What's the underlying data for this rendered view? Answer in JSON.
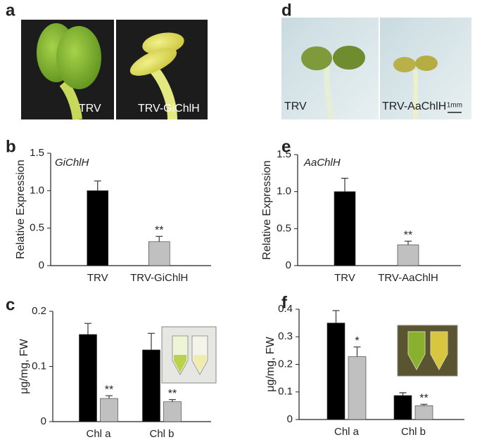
{
  "photos": [
    {
      "panel_label": "a",
      "labels": [
        "TRV",
        "TRV-GiChlH"
      ]
    },
    {
      "panel_label": "d",
      "labels": [
        "TRV",
        "TRV-AaChlH"
      ],
      "scale_bar": "1mm"
    }
  ],
  "chart_data": [
    {
      "type": "bar",
      "panel_label": "b",
      "annotation": "GiChlH",
      "ylabel": "Relative Expression",
      "categories": [
        "TRV",
        "TRV-GiChlH"
      ],
      "values": [
        1.0,
        0.32
      ],
      "errors": [
        0.13,
        0.07
      ],
      "colors": [
        "#000000",
        "#c0c0c0"
      ],
      "significance": [
        null,
        "**"
      ],
      "ylim": [
        0,
        1.5
      ],
      "yticks": [
        0,
        0.5,
        {
          "value": 1,
          "label": "1.0"
        },
        1.5
      ]
    },
    {
      "type": "bar",
      "panel_label": "e",
      "annotation": "AaChlH",
      "ylabel": "Relative Expression",
      "categories": [
        "TRV",
        "TRV-AaChlH"
      ],
      "values": [
        1.0,
        0.28
      ],
      "errors": [
        0.18,
        0.05
      ],
      "colors": [
        "#000000",
        "#c0c0c0"
      ],
      "significance": [
        null,
        "**"
      ],
      "ylim": [
        0,
        1.5
      ],
      "yticks": [
        0,
        0.5,
        {
          "value": 1,
          "label": "1.0"
        },
        1.5
      ]
    },
    {
      "type": "grouped_bar",
      "panel_label": "c",
      "ylabel": "μg/mg, FW",
      "categories": [
        "Chl a",
        "Chl b"
      ],
      "series": [
        {
          "color": "#000000",
          "values": [
            0.158,
            0.13
          ],
          "errors": [
            0.02,
            0.03
          ]
        },
        {
          "color": "#c0c0c0",
          "values": [
            0.042,
            0.036
          ],
          "errors": [
            0.005,
            0.004
          ],
          "significance": [
            "**",
            "**"
          ]
        }
      ],
      "ylim": [
        0,
        0.2
      ],
      "yticks": [
        0,
        0.1,
        0.2
      ]
    },
    {
      "type": "grouped_bar",
      "panel_label": "f",
      "ylabel": "μg/mg, FW",
      "categories": [
        "Chl a",
        "Chl b"
      ],
      "series": [
        {
          "color": "#000000",
          "values": [
            0.35,
            0.087
          ],
          "errors": [
            0.045,
            0.01
          ]
        },
        {
          "color": "#c0c0c0",
          "values": [
            0.228,
            0.05
          ],
          "errors": [
            0.035,
            0.005
          ],
          "significance": [
            "*",
            "**"
          ]
        }
      ],
      "ylim": [
        0,
        0.4
      ],
      "yticks": [
        0,
        0.1,
        0.2,
        0.3,
        0.4
      ]
    }
  ]
}
